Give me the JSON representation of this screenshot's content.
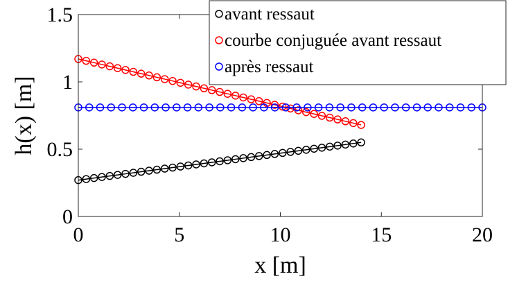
{
  "chart_data": {
    "type": "line",
    "xlabel": "x [m]",
    "ylabel": "h(x) [m]",
    "xlim": [
      0,
      20
    ],
    "ylim": [
      0,
      1.5
    ],
    "xticks": [
      0,
      5,
      10,
      15,
      20
    ],
    "yticks": [
      0,
      0.5,
      1,
      1.5
    ],
    "xtick_labels": [
      "0",
      "5",
      "10",
      "15",
      "20"
    ],
    "ytick_labels": [
      "0",
      "0.5",
      "1",
      "1.5"
    ],
    "grid": false,
    "legend_position": "top-right",
    "marker": "circle",
    "series": [
      {
        "name": "avant ressaut",
        "color": "#000000",
        "x_start": 0,
        "x_end": 14,
        "n_points": 37,
        "y_start": 0.27,
        "y_end": 0.55
      },
      {
        "name": "courbe conjuguée avant ressaut",
        "color": "#ff0000",
        "x_start": 0,
        "x_end": 14,
        "n_points": 37,
        "y_start": 1.17,
        "y_end": 0.68
      },
      {
        "name": "après ressaut",
        "color": "#0000ff",
        "x_start": 0,
        "x_end": 20,
        "n_points": 38,
        "y_start": 0.81,
        "y_end": 0.81
      }
    ]
  }
}
